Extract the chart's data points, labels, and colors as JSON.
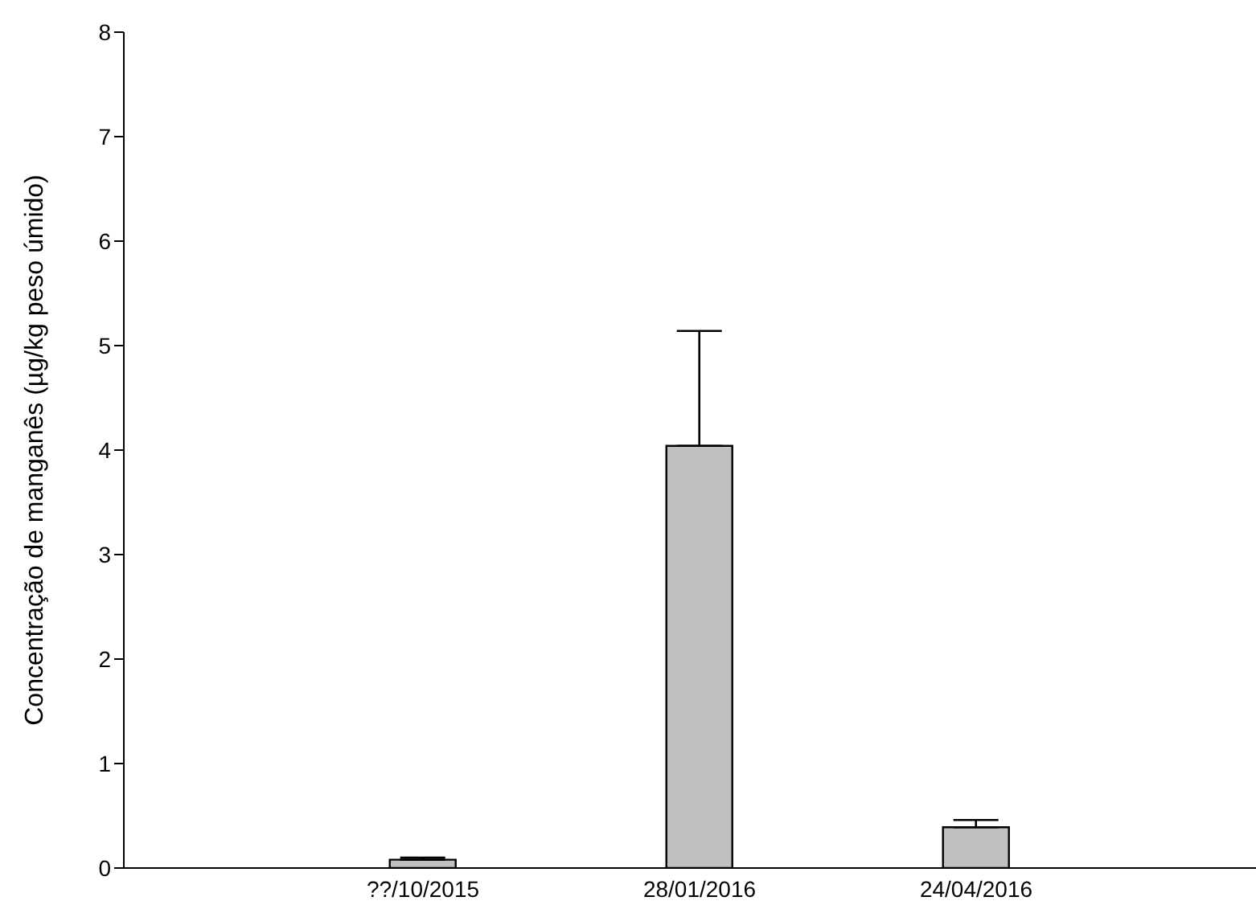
{
  "chart_data": {
    "type": "bar",
    "ylabel": "Concentração de manganês (µg/kg peso úmido)",
    "categories": [
      "??/10/2015",
      "28/01/2016",
      "24/04/2016"
    ],
    "values": [
      0.08,
      4.04,
      0.39
    ],
    "errors": [
      [
        0.08,
        0.1
      ],
      [
        4.04,
        5.14
      ],
      [
        0.39,
        0.46
      ]
    ],
    "color": "#c0c0c0",
    "ylim": [
      0,
      8
    ],
    "yticks": [
      0,
      1,
      2,
      3,
      4,
      5,
      6,
      7,
      8
    ],
    "grid": false,
    "legend": false
  }
}
